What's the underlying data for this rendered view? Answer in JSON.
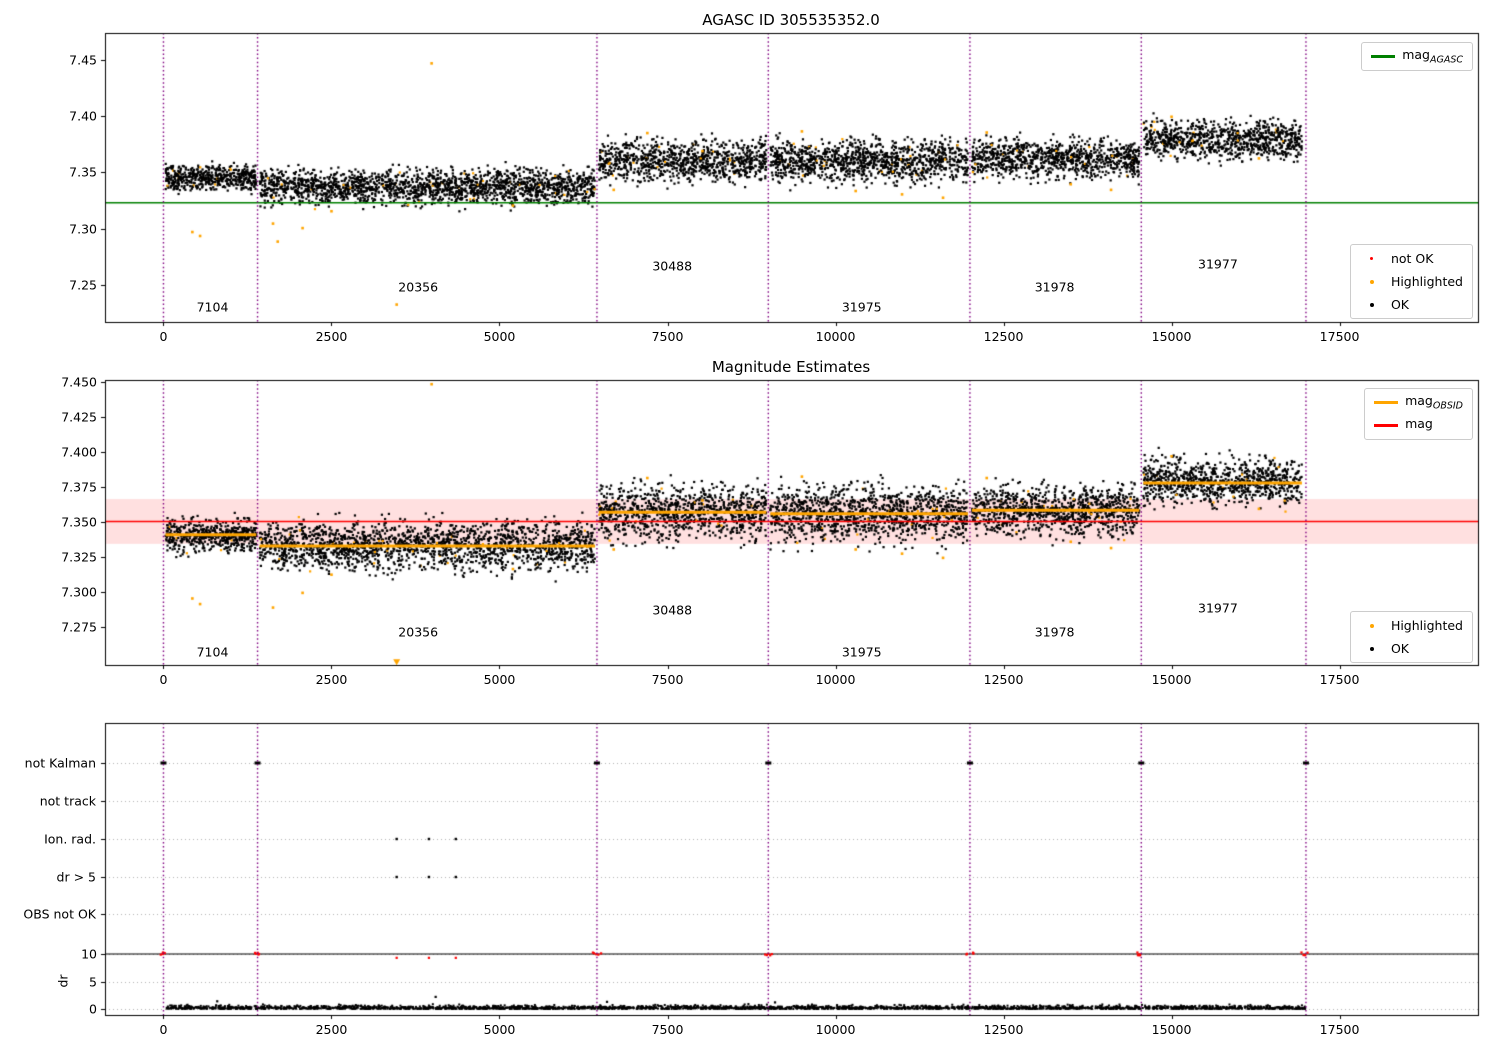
{
  "colors": {
    "ok": "#000000",
    "highlighted": "#ffa500",
    "not_ok": "#ff0000",
    "boundary": "#800080",
    "agasc_line": "#008000",
    "obsid_line": "#ffa500",
    "mag_line": "#ff0000",
    "band": "rgba(255,0,0,0.12)",
    "grid": "#b0b0b0"
  },
  "chart_data": [
    {
      "type": "scatter",
      "title": "AGASC ID 305535352.0",
      "xlim": [
        -870,
        19560
      ],
      "ylim": [
        7.217,
        7.474
      ],
      "xticks": [
        0,
        2500,
        5000,
        7500,
        10000,
        12500,
        15000,
        17500
      ],
      "xtick_labels": [
        "0",
        "2500",
        "5000",
        "7500",
        "10000",
        "12500",
        "15000",
        "17500"
      ],
      "yticks": [
        7.25,
        7.3,
        7.35,
        7.4,
        7.45
      ],
      "ytick_labels": [
        "7.25",
        "7.30",
        "7.35",
        "7.40",
        "7.45"
      ],
      "hline": {
        "label": "mag",
        "sub": "AGASC",
        "value": 7.323,
        "color": "#008000"
      },
      "boundaries": [
        0,
        1400,
        6450,
        9000,
        12000,
        14550,
        17000
      ],
      "highlight_fraction": 0.018,
      "segments": [
        {
          "obsid": "7104",
          "x0": 30,
          "x1": 1380,
          "mean": 7.345,
          "std": 0.0055,
          "n": 520,
          "label_x": 730,
          "label_y": 7.2305
        },
        {
          "obsid": "20356",
          "x0": 1430,
          "x1": 6420,
          "mean": 7.337,
          "std": 0.0075,
          "n": 1900,
          "label_x": 3790,
          "label_y": 7.2485
        },
        {
          "obsid": "30488",
          "x0": 6480,
          "x1": 8970,
          "mean": 7.3605,
          "std": 0.009,
          "n": 950,
          "label_x": 7570,
          "label_y": 7.2665
        },
        {
          "obsid": "31975",
          "x0": 9030,
          "x1": 11970,
          "mean": 7.3605,
          "std": 0.009,
          "n": 1150,
          "label_x": 10390,
          "label_y": 7.2305
        },
        {
          "obsid": "31978",
          "x0": 12030,
          "x1": 14520,
          "mean": 7.362,
          "std": 0.0085,
          "n": 950,
          "label_x": 13260,
          "label_y": 7.2485
        },
        {
          "obsid": "31977",
          "x0": 14580,
          "x1": 16940,
          "mean": 7.379,
          "std": 0.008,
          "n": 900,
          "label_x": 15690,
          "label_y": 7.2685
        }
      ],
      "highlighted_outliers": [
        [
          430,
          7.297
        ],
        [
          545,
          7.2935
        ],
        [
          1630,
          7.3045
        ],
        [
          1700,
          7.2885
        ],
        [
          2070,
          7.3005
        ],
        [
          2500,
          7.3155
        ],
        [
          3470,
          7.2325
        ],
        [
          3990,
          7.447
        ],
        [
          5200,
          7.3205
        ],
        [
          6700,
          7.3345
        ],
        [
          7200,
          7.385
        ],
        [
          8020,
          7.369
        ],
        [
          9500,
          7.3865
        ],
        [
          10300,
          7.3335
        ],
        [
          10990,
          7.3305
        ],
        [
          11600,
          7.3275
        ],
        [
          12250,
          7.3855
        ],
        [
          13500,
          7.3395
        ],
        [
          14100,
          7.3345
        ],
        [
          15000,
          7.3995
        ],
        [
          16300,
          7.3625
        ]
      ],
      "legend_line": {
        "items": [
          {
            "label": "mag",
            "sub": "AGASC",
            "color": "#008000"
          }
        ]
      },
      "legend_markers": {
        "items": [
          {
            "label": "not OK",
            "color": "#ff0000"
          },
          {
            "label": "Highlighted",
            "color": "#ffa500"
          },
          {
            "label": "OK",
            "color": "#000000"
          }
        ]
      }
    },
    {
      "type": "scatter",
      "title": "Magnitude Estimates",
      "xlim": [
        -870,
        19560
      ],
      "ylim": [
        7.248,
        7.4515
      ],
      "xticks": [
        0,
        2500,
        5000,
        7500,
        10000,
        12500,
        15000,
        17500
      ],
      "xtick_labels": [
        "0",
        "2500",
        "5000",
        "7500",
        "10000",
        "12500",
        "15000",
        "17500"
      ],
      "yticks": [
        7.275,
        7.3,
        7.325,
        7.35,
        7.375,
        7.4,
        7.425,
        7.45
      ],
      "ytick_labels": [
        "7.275",
        "7.300",
        "7.325",
        "7.350",
        "7.375",
        "7.400",
        "7.425",
        "7.450"
      ],
      "mag_line": {
        "label": "mag",
        "value": 7.3505,
        "color": "#ff0000",
        "band": [
          7.3345,
          7.3665
        ],
        "band_color": "rgba(255,0,0,0.12)"
      },
      "boundaries": [
        0,
        1400,
        6450,
        9000,
        12000,
        14550,
        17000
      ],
      "highlight_fraction": 0.018,
      "segments": [
        {
          "obsid": "7104",
          "x0": 30,
          "x1": 1380,
          "mean": 7.34,
          "std": 0.0055,
          "obsid_mag": 7.341,
          "n": 520,
          "label_x": 730,
          "label_y": 7.2575
        },
        {
          "obsid": "20356",
          "x0": 1430,
          "x1": 6420,
          "mean": 7.333,
          "std": 0.0085,
          "obsid_mag": 7.333,
          "n": 1900,
          "label_x": 3790,
          "label_y": 7.2715
        },
        {
          "obsid": "30488",
          "x0": 6480,
          "x1": 8970,
          "mean": 7.357,
          "std": 0.0095,
          "obsid_mag": 7.357,
          "n": 950,
          "label_x": 7570,
          "label_y": 7.2875
        },
        {
          "obsid": "31975",
          "x0": 9030,
          "x1": 11970,
          "mean": 7.356,
          "std": 0.0095,
          "obsid_mag": 7.356,
          "n": 1150,
          "label_x": 10390,
          "label_y": 7.2575
        },
        {
          "obsid": "31978",
          "x0": 12030,
          "x1": 14520,
          "mean": 7.358,
          "std": 0.0085,
          "obsid_mag": 7.3585,
          "n": 950,
          "label_x": 13260,
          "label_y": 7.2715
        },
        {
          "obsid": "31977",
          "x0": 14580,
          "x1": 16940,
          "mean": 7.3785,
          "std": 0.008,
          "obsid_mag": 7.378,
          "n": 900,
          "label_x": 15690,
          "label_y": 7.2885
        }
      ],
      "highlighted_outliers": [
        [
          430,
          7.2955
        ],
        [
          545,
          7.2915
        ],
        [
          1630,
          7.289
        ],
        [
          2070,
          7.2995
        ],
        [
          2500,
          7.3125
        ],
        [
          3990,
          7.4485
        ],
        [
          5200,
          7.3165
        ],
        [
          6700,
          7.3305
        ],
        [
          7200,
          7.3815
        ],
        [
          8020,
          7.3655
        ],
        [
          9500,
          7.3825
        ],
        [
          10300,
          7.3305
        ],
        [
          10990,
          7.3275
        ],
        [
          11600,
          7.3245
        ],
        [
          12250,
          7.3815
        ],
        [
          13500,
          7.336
        ],
        [
          14100,
          7.3315
        ],
        [
          15000,
          7.397
        ],
        [
          16300,
          7.3595
        ]
      ],
      "clipped_low": [
        3470
      ],
      "legend_line": {
        "items": [
          {
            "label": "mag",
            "sub": "OBSID",
            "color": "#ffa500"
          },
          {
            "label": "mag",
            "sub": "",
            "color": "#ff0000"
          }
        ]
      },
      "legend_markers": {
        "items": [
          {
            "label": "Highlighted",
            "color": "#ffa500"
          },
          {
            "label": "OK",
            "color": "#000000"
          }
        ]
      }
    },
    {
      "type": "flags",
      "xlim": [
        -870,
        19560
      ],
      "xticks": [
        0,
        2500,
        5000,
        7500,
        10000,
        12500,
        15000,
        17500
      ],
      "xtick_labels": [
        "0",
        "2500",
        "5000",
        "7500",
        "10000",
        "12500",
        "15000",
        "17500"
      ],
      "categories": [
        "not Kalman",
        "not track",
        "Ion. rad.",
        "dr > 5",
        "OBS not OK"
      ],
      "ylabel": "dr",
      "dr_ticks": [
        10,
        5,
        0
      ],
      "dr_tick_labels": [
        "10",
        "5",
        "0"
      ],
      "dr_threshold_line": 10,
      "boundaries": [
        0,
        1400,
        6450,
        9000,
        12000,
        14550,
        17000
      ],
      "not_kalman_x": [
        0,
        1400,
        6450,
        9000,
        12000,
        14550,
        17000
      ],
      "ion_rad_x": [
        3470,
        3950,
        4350
      ],
      "dr_gt5_x": [
        3470,
        3950,
        4350
      ],
      "not_ok_dr10_x": [
        0,
        1400,
        6450,
        9000,
        12000,
        14550,
        17000
      ],
      "not_ok_small": [
        [
          3470,
          9.3
        ],
        [
          3950,
          9.3
        ],
        [
          4350,
          9.3
        ]
      ],
      "dr_outliers": [
        [
          4050,
          2.2
        ],
        [
          800,
          1.4
        ],
        [
          6600,
          1.3
        ],
        [
          9100,
          1.2
        ]
      ],
      "dr_noise": {
        "n": 2600,
        "x0": 30,
        "x1": 16990,
        "scale": 0.3
      }
    }
  ]
}
